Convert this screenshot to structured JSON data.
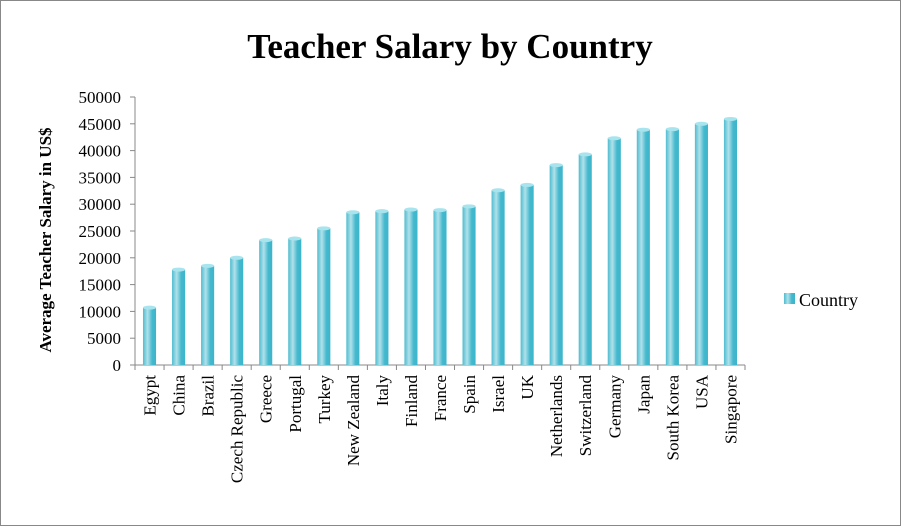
{
  "chart_data": {
    "type": "bar",
    "title": "Teacher Salary by Country",
    "y_label": "Average Teacher Salary in US$",
    "categories": [
      "Egypt",
      "China",
      "Brazil",
      "Czech Republic",
      "Greece",
      "Portugal",
      "Turkey",
      "New Zealand",
      "Italy",
      "Finland",
      "France",
      "Spain",
      "Israel",
      "UK",
      "Netherlands",
      "Switzerland",
      "Germany",
      "Japan",
      "South Korea",
      "USA",
      "Singapore"
    ],
    "series": [
      {
        "name": "Country",
        "color": "#3bb5cb",
        "values": [
          10700,
          17800,
          18500,
          20000,
          23300,
          23600,
          25500,
          28500,
          28700,
          29000,
          28900,
          29600,
          32600,
          33600,
          37300,
          39300,
          42300,
          43900,
          44000,
          45000,
          45900
        ]
      }
    ],
    "ylim": [
      0,
      50000
    ],
    "yticks": [
      0,
      5000,
      10000,
      15000,
      20000,
      25000,
      30000,
      35000,
      40000,
      45000,
      50000
    ],
    "grid": false,
    "legend": "right"
  }
}
